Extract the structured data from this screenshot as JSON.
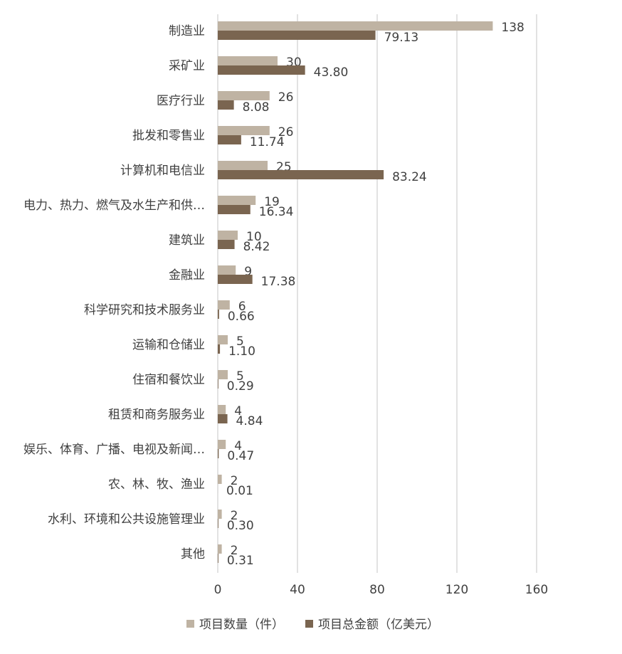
{
  "chart_data": {
    "type": "bar",
    "orientation": "horizontal",
    "categories": [
      "制造业",
      "采矿业",
      "医疗行业",
      "批发和零售业",
      "计算机和电信业",
      "电力、热力、燃气及水生产和供…",
      "建筑业",
      "金融业",
      "科学研究和技术服务业",
      "运输和仓储业",
      "住宿和餐饮业",
      "租赁和商务服务业",
      "娱乐、体育、广播、电视及新闻…",
      "农、林、牧、渔业",
      "水利、环境和公共设施管理业",
      "其他"
    ],
    "series": [
      {
        "name": "项目数量（件）",
        "color": "#bfb3a3",
        "values": [
          138,
          30,
          26,
          26,
          25,
          19,
          10,
          9,
          6,
          5,
          5,
          4,
          4,
          2,
          2,
          2
        ]
      },
      {
        "name": "项目总金额（亿美元）",
        "color": "#7a6550",
        "values": [
          79.13,
          43.8,
          8.08,
          11.74,
          83.24,
          16.34,
          8.42,
          17.38,
          0.66,
          1.1,
          0.29,
          4.84,
          0.47,
          0.01,
          0.3,
          0.31
        ],
        "value_labels": [
          "79.13",
          "43.80",
          "8.08",
          "11.74",
          "83.24",
          "16.34",
          "8.42",
          "17.38",
          "0.66",
          "1.10",
          "0.29",
          "4.84",
          "0.47",
          "0.01",
          "0.30",
          "0.31"
        ]
      }
    ],
    "xlim": [
      0,
      160
    ],
    "xticks": [
      0,
      40,
      80,
      120,
      160
    ],
    "grid": true,
    "legend": "bottom"
  }
}
